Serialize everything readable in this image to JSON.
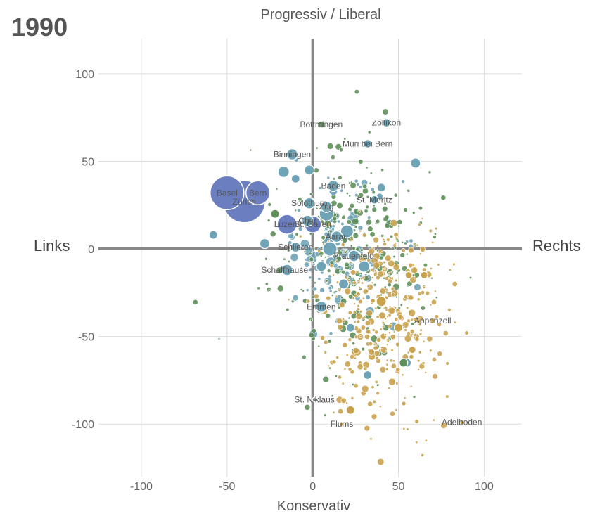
{
  "year": "1990",
  "chart_data": {
    "type": "scatter",
    "title": "",
    "x_axis_label": "Konservativ",
    "y_axis_label": "Progressiv / Liberal",
    "left_label": "Links",
    "right_label": "Rechts",
    "xlim": [
      -125,
      122
    ],
    "ylim": [
      -130,
      120
    ],
    "x_ticks": [
      -100,
      -50,
      0,
      50,
      100
    ],
    "y_ticks": [
      100,
      50,
      0,
      -50,
      -100
    ],
    "x_tick_labels": [
      "-100",
      "-50",
      "0",
      "50",
      "100"
    ],
    "y_tick_labels": [
      "100",
      "50",
      "0",
      "-50",
      "-100"
    ],
    "grid": true,
    "colors": {
      "large_cities": "#6b7fc0",
      "teal": "#6fa3b6",
      "green": "#5f8f5a",
      "gold": "#c9a24c"
    },
    "labeled_points": [
      {
        "name": "Basel",
        "x": -50,
        "y": 32,
        "size": 24,
        "color": "#6b7fc0"
      },
      {
        "name": "Zürich",
        "x": -40,
        "y": 27,
        "size": 30,
        "color": "#6b7fc0"
      },
      {
        "name": "Bern",
        "x": -32,
        "y": 32,
        "size": 17,
        "color": "#6b7fc0"
      },
      {
        "name": "Luzern",
        "x": -15,
        "y": 14,
        "size": 14,
        "color": "#6b7fc0"
      },
      {
        "name": "St. Gallen",
        "x": 0,
        "y": 14,
        "size": 12,
        "color": "#6b7fc0"
      },
      {
        "name": "Chur",
        "x": -3,
        "y": 16,
        "size": 8,
        "color": "#6fa3b6"
      },
      {
        "name": "Solothurn",
        "x": -2,
        "y": 26,
        "size": 8,
        "color": "#6fa3b6"
      },
      {
        "name": "Zug",
        "x": 8,
        "y": 24,
        "size": 8,
        "color": "#6fa3b6"
      },
      {
        "name": "Baden",
        "x": 12,
        "y": 36,
        "size": 8,
        "color": "#6fa3b6"
      },
      {
        "name": "St. Moritz",
        "x": 36,
        "y": 28,
        "size": 6,
        "color": "#6fa3b6"
      },
      {
        "name": "Aarau",
        "x": 14,
        "y": 7,
        "size": 8,
        "color": "#6fa3b6"
      },
      {
        "name": "Schlieren",
        "x": -10,
        "y": 1,
        "size": 7,
        "color": "#6fa3b6"
      },
      {
        "name": "Frauenfeld",
        "x": 24,
        "y": -4,
        "size": 8,
        "color": "#6fa3b6"
      },
      {
        "name": "Schaffhausen",
        "x": -15,
        "y": -12,
        "size": 8,
        "color": "#6fa3b6"
      },
      {
        "name": "Emmen",
        "x": 5,
        "y": -33,
        "size": 8,
        "color": "#6fa3b6"
      },
      {
        "name": "Binningen",
        "x": -12,
        "y": 54,
        "size": 8,
        "color": "#6fa3b6"
      },
      {
        "name": "Bottmingen",
        "x": 5,
        "y": 71,
        "size": 5,
        "color": "#5f8f5a"
      },
      {
        "name": "Zollikon",
        "x": 43,
        "y": 72,
        "size": 6,
        "color": "#6fa3b6"
      },
      {
        "name": "Muri bei Bern",
        "x": 32,
        "y": 60,
        "size": 6,
        "color": "#6fa3b6"
      },
      {
        "name": "Appenzell",
        "x": 70,
        "y": -41,
        "size": 4,
        "color": "#c9a24c"
      },
      {
        "name": "St. Niklaus",
        "x": 1,
        "y": -86,
        "size": 3,
        "color": "#5f8f5a"
      },
      {
        "name": "Flums",
        "x": 17,
        "y": -100,
        "size": 3,
        "color": "#c9a24c"
      },
      {
        "name": "Adelboden",
        "x": 87,
        "y": -99,
        "size": 3,
        "color": "#c9a24c"
      }
    ],
    "extra_points": [
      {
        "x": -58,
        "y": 8,
        "size": 6,
        "color": "#6fa3b6"
      },
      {
        "x": -28,
        "y": 3,
        "size": 7,
        "color": "#6fa3b6"
      },
      {
        "x": -17,
        "y": 44,
        "size": 8,
        "color": "#6fa3b6"
      },
      {
        "x": -10,
        "y": 40,
        "size": 6,
        "color": "#6fa3b6"
      },
      {
        "x": -2,
        "y": 45,
        "size": 7,
        "color": "#6fa3b6"
      },
      {
        "x": 8,
        "y": 20,
        "size": 10,
        "color": "#6fa3b6"
      },
      {
        "x": 10,
        "y": 0,
        "size": 10,
        "color": "#6fa3b6"
      },
      {
        "x": 20,
        "y": 10,
        "size": 9,
        "color": "#6fa3b6"
      },
      {
        "x": 30,
        "y": -10,
        "size": 8,
        "color": "#6fa3b6"
      },
      {
        "x": 18,
        "y": -20,
        "size": 7,
        "color": "#6fa3b6"
      },
      {
        "x": 5,
        "y": -10,
        "size": 7,
        "color": "#6fa3b6"
      },
      {
        "x": 60,
        "y": 49,
        "size": 7,
        "color": "#6fa3b6"
      },
      {
        "x": 32,
        "y": -72,
        "size": 6,
        "color": "#6fa3b6"
      },
      {
        "x": 55,
        "y": -65,
        "size": 6,
        "color": "#6fa3b6"
      },
      {
        "x": 22,
        "y": -45,
        "size": 6,
        "color": "#6fa3b6"
      },
      {
        "x": 40,
        "y": 35,
        "size": 6,
        "color": "#6fa3b6"
      },
      {
        "x": 12,
        "y": 33,
        "size": 6,
        "color": "#6fa3b6"
      },
      {
        "x": -22,
        "y": 20,
        "size": 6,
        "color": "#5f8f5a"
      },
      {
        "x": 53,
        "y": -65,
        "size": 6,
        "color": "#5f8f5a"
      },
      {
        "x": 22,
        "y": -92,
        "size": 6,
        "color": "#c9a24c"
      },
      {
        "x": 56,
        "y": -15,
        "size": 5,
        "color": "#c9a24c"
      },
      {
        "x": 65,
        "y": -15,
        "size": 5,
        "color": "#c9a24c"
      },
      {
        "x": 40,
        "y": -30,
        "size": 7,
        "color": "#c9a24c"
      },
      {
        "x": 50,
        "y": -45,
        "size": 6,
        "color": "#c9a24c"
      }
    ],
    "cloud": [
      {
        "color": "#6fa3b6",
        "count": 140,
        "cx": 15,
        "cy": 0,
        "sx": 16,
        "sy": 20,
        "minSize": 2,
        "maxSize": 7
      },
      {
        "color": "#5f8f5a",
        "count": 320,
        "cx": 20,
        "cy": -5,
        "sx": 22,
        "sy": 30,
        "minSize": 1.5,
        "maxSize": 5
      },
      {
        "color": "#c9a24c",
        "count": 380,
        "cx": 40,
        "cy": -40,
        "sx": 18,
        "sy": 28,
        "minSize": 1.5,
        "maxSize": 5
      }
    ]
  }
}
